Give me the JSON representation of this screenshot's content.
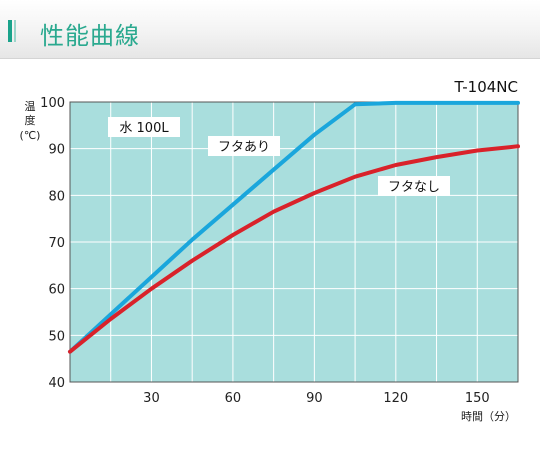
{
  "header": {
    "title": "性能曲線"
  },
  "chart_data": {
    "type": "line",
    "model": "T-104NC",
    "note": "水 100L",
    "ylabel_chars": [
      "温",
      "度"
    ],
    "yunit": "(℃)",
    "xlabel": "時間（分）",
    "xlim": [
      0,
      165
    ],
    "ylim": [
      40,
      100
    ],
    "xticks": [
      30,
      60,
      90,
      120,
      150
    ],
    "yticks": [
      40,
      50,
      60,
      70,
      80,
      90,
      100
    ],
    "grid_x_step": 15,
    "grid": true,
    "background": "#a9dedd",
    "series": [
      {
        "name": "フタあり",
        "color": "#1aa6dc",
        "x": [
          0,
          15,
          30,
          45,
          60,
          75,
          90,
          105,
          120,
          135,
          150,
          165
        ],
        "y": [
          46.5,
          54.5,
          62.5,
          70.5,
          78,
          85.5,
          93,
          99.5,
          99.8,
          99.8,
          99.8,
          99.8
        ]
      },
      {
        "name": "フタなし",
        "color": "#d9222a",
        "x": [
          0,
          15,
          30,
          45,
          60,
          75,
          90,
          105,
          120,
          135,
          150,
          165
        ],
        "y": [
          46.5,
          53.5,
          60,
          66,
          71.5,
          76.5,
          80.5,
          84,
          86.5,
          88.2,
          89.6,
          90.5
        ]
      }
    ]
  }
}
